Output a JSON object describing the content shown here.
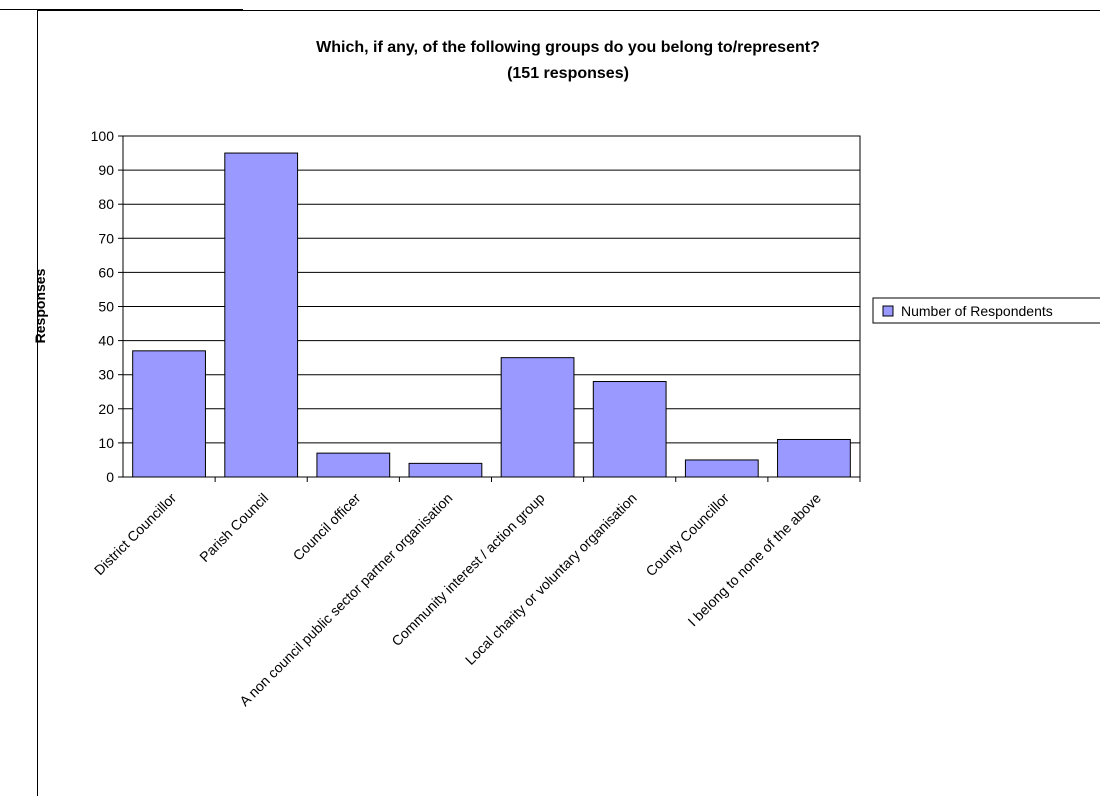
{
  "chart_data": {
    "type": "bar",
    "title": "Which, if any, of the following groups do you belong to/represent?",
    "subtitle": "(151 responses)",
    "xlabel": "",
    "ylabel": "Responses",
    "ylim": [
      0,
      100
    ],
    "yticks": [
      0,
      10,
      20,
      30,
      40,
      50,
      60,
      70,
      80,
      90,
      100
    ],
    "grid": true,
    "legend_position": "right",
    "categories": [
      "District Councillor",
      "Parish Council",
      "Council officer",
      "A non council public sector partner organisation",
      "Community interest / action group",
      "Local charity or voluntary organisation",
      "County Councillor",
      "I belong to none of the above"
    ],
    "series": [
      {
        "name": "Number of Respondents",
        "color": "#9999ff",
        "values": [
          37,
          95,
          7,
          4,
          35,
          28,
          5,
          11
        ]
      }
    ]
  }
}
